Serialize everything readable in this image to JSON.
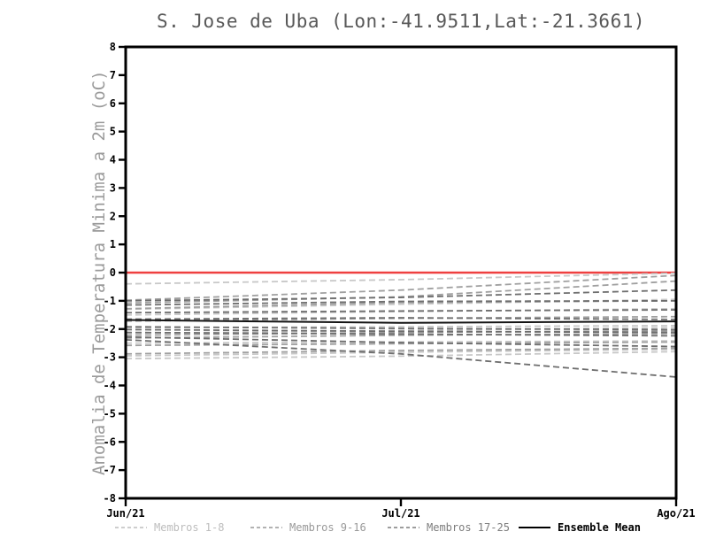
{
  "chart_title": "S. Jose de Uba (Lon:-41.9511,Lat:-21.3661)",
  "chart_data": {
    "type": "line",
    "title": "S. Jose de Uba (Lon:-41.9511,Lat:-21.3661)",
    "xlabel": "",
    "ylabel": "Anomalia de Temperatura Minima a 2m (oC)",
    "x_categories": [
      "Jun/21",
      "Jul/21",
      "Ago/21"
    ],
    "ylim": [
      -8,
      8
    ],
    "ytick_step": 1,
    "grid": false,
    "frame_color": "#000000",
    "legend_position": "bottom",
    "zero_line": {
      "value": 0,
      "color": "#ef4040",
      "style": "solid"
    },
    "groups": [
      {
        "name": "Membros 1-8",
        "color": "#c8c8c8",
        "style": "dashed",
        "members": [
          [
            -0.4,
            -0.25,
            -0.02
          ],
          [
            -1.3,
            -1.12,
            -0.95
          ],
          [
            -1.5,
            -1.38,
            -1.28
          ],
          [
            -1.95,
            -1.92,
            -1.88
          ],
          [
            -2.5,
            -2.46,
            -2.42
          ],
          [
            -2.95,
            -2.82,
            -2.72
          ],
          [
            -3.05,
            -2.96,
            -2.8
          ],
          [
            -2.15,
            -2.05,
            -1.95
          ]
        ]
      },
      {
        "name": "Membros 9-16",
        "color": "#a0a0a0",
        "style": "dashed",
        "members": [
          [
            -0.98,
            -0.62,
            -0.1
          ],
          [
            -1.08,
            -0.86,
            -0.3
          ],
          [
            -1.28,
            -1.06,
            -1.0
          ],
          [
            -1.72,
            -1.62,
            -1.56
          ],
          [
            -2.22,
            -2.12,
            -2.06
          ],
          [
            -2.32,
            -2.22,
            -2.16
          ],
          [
            -2.58,
            -2.52,
            -2.46
          ],
          [
            -2.88,
            -2.76,
            -2.68
          ]
        ]
      },
      {
        "name": "Membros 17-25",
        "color": "#6e6e6e",
        "style": "dashed",
        "members": [
          [
            -1.0,
            -0.88,
            -0.62
          ],
          [
            -1.15,
            -1.02,
            -1.0
          ],
          [
            -1.42,
            -1.36,
            -1.32
          ],
          [
            -1.65,
            -1.6,
            -1.66
          ],
          [
            -1.92,
            -1.98,
            -2.02
          ],
          [
            -2.02,
            -2.08,
            -2.12
          ],
          [
            -2.12,
            -2.18,
            -2.24
          ],
          [
            -2.28,
            -2.48,
            -2.62
          ],
          [
            -2.38,
            -2.88,
            -3.7
          ]
        ]
      }
    ],
    "ensemble_mean": {
      "name": "Ensemble Mean",
      "color": "#141414",
      "style": "solid",
      "values": [
        -1.68,
        -1.78,
        -1.73
      ]
    }
  },
  "legend": {
    "items": [
      {
        "label": "Membros 1-8",
        "color": "#bdbdbd",
        "style": "dashed"
      },
      {
        "label": "Membros 9-16",
        "color": "#999999",
        "style": "dashed"
      },
      {
        "label": "Membros 17-25",
        "color": "#7d7d7d",
        "style": "dashed"
      },
      {
        "label": "Ensemble Mean",
        "color": "#000000",
        "style": "solid"
      }
    ]
  }
}
